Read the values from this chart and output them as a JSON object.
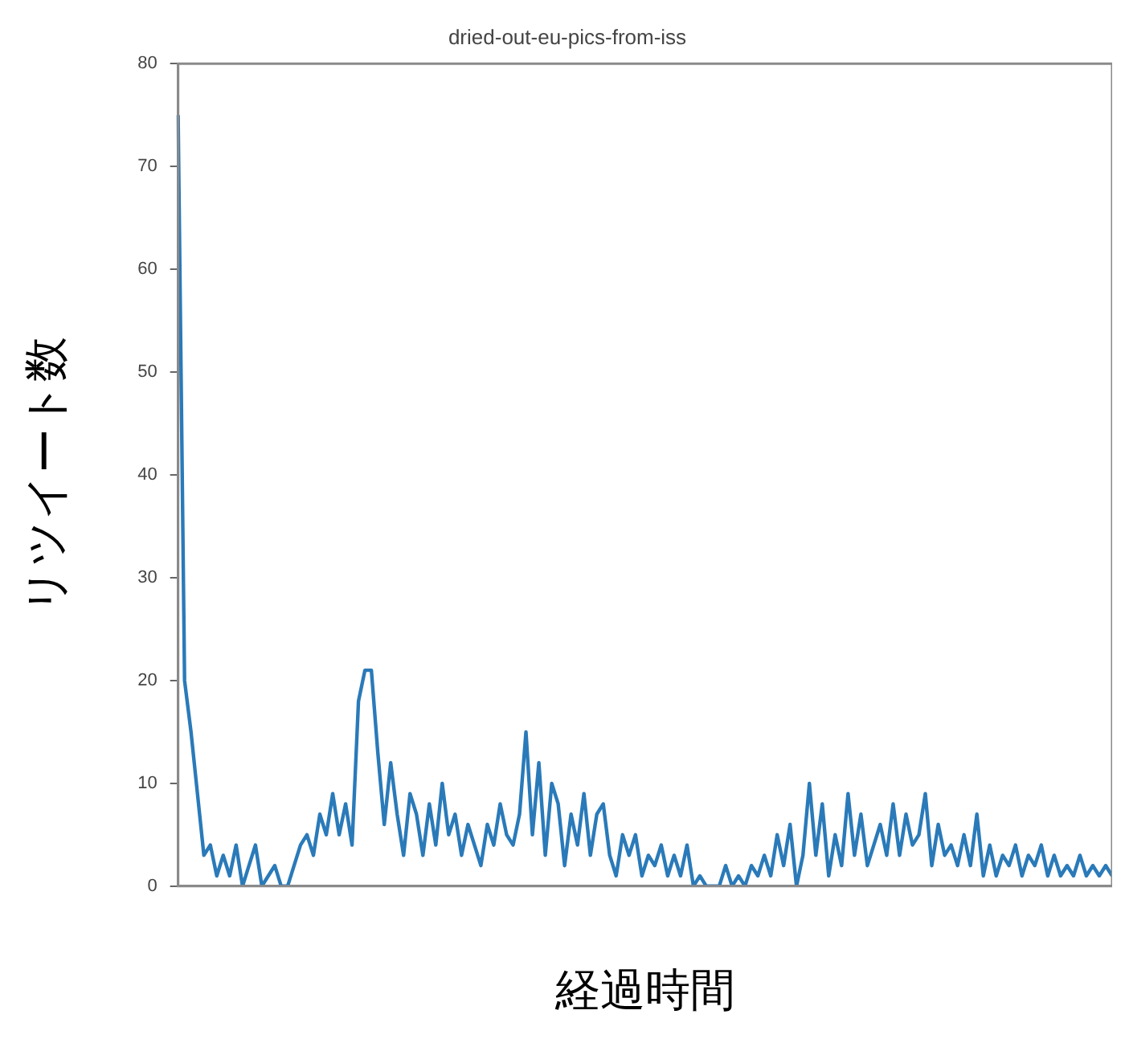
{
  "chart_data": {
    "type": "line",
    "title": "dried-out-eu-pics-from-iss",
    "xlabel": "経過時間",
    "ylabel": "リツイート数",
    "categories": [
      null,
      null,
      null,
      null,
      null,
      null,
      null,
      null,
      null,
      null,
      null,
      null,
      null,
      null,
      null,
      null,
      null,
      null,
      null,
      null,
      null,
      null,
      null,
      null,
      null,
      null,
      null,
      null,
      null,
      null,
      null,
      null,
      null,
      null,
      null,
      null,
      null,
      null,
      null,
      null,
      null,
      null,
      null,
      null,
      null,
      null,
      null,
      null,
      null,
      null,
      null,
      null,
      null,
      null,
      null,
      null,
      null,
      null,
      null,
      null,
      null,
      null,
      null,
      null,
      null,
      null,
      null,
      null,
      null,
      null,
      null,
      null,
      null,
      null,
      null,
      null,
      null,
      null,
      null,
      null,
      null,
      null,
      null,
      null,
      null,
      null,
      null,
      null,
      null,
      null,
      null,
      null,
      null,
      null,
      null,
      null,
      null,
      null,
      null,
      null,
      null,
      null,
      null,
      null,
      null,
      null,
      null,
      null,
      null,
      null,
      null,
      null,
      null,
      null,
      null,
      null,
      null,
      null,
      null,
      null,
      null,
      null,
      null,
      null,
      null,
      null,
      null,
      null,
      null,
      null,
      null,
      null,
      null,
      null,
      null,
      null,
      null,
      null,
      null,
      null,
      null,
      null,
      null,
      null,
      null,
      null
    ],
    "values": [
      75,
      20,
      15,
      9,
      3,
      4,
      1,
      3,
      1,
      4,
      0,
      2,
      4,
      0,
      1,
      2,
      0,
      0,
      2,
      4,
      5,
      3,
      7,
      5,
      9,
      5,
      8,
      4,
      18,
      21,
      21,
      13,
      6,
      12,
      7,
      3,
      9,
      7,
      3,
      8,
      4,
      10,
      5,
      7,
      3,
      6,
      4,
      2,
      6,
      4,
      8,
      5,
      4,
      7,
      15,
      5,
      12,
      3,
      10,
      8,
      2,
      7,
      4,
      9,
      3,
      7,
      8,
      3,
      1,
      5,
      3,
      5,
      1,
      3,
      2,
      4,
      1,
      3,
      1,
      4,
      0,
      1,
      0,
      0,
      0,
      2,
      0,
      1,
      0,
      2,
      1,
      3,
      1,
      5,
      2,
      6,
      0,
      3,
      10,
      3,
      8,
      1,
      5,
      2,
      9,
      3,
      7,
      2,
      4,
      6,
      3,
      8,
      3,
      7,
      4,
      5,
      9,
      2,
      6,
      3,
      4,
      2,
      5,
      2,
      7,
      1,
      4,
      1,
      3,
      2,
      4,
      1,
      3,
      2,
      4,
      1,
      3,
      1,
      2,
      1,
      3,
      1,
      2,
      1,
      2,
      1
    ],
    "color": "#2a7ab9",
    "marker": "none",
    "grid": false,
    "tick_labels": "y",
    "ylim": [
      0,
      80
    ],
    "yticks": [
      0,
      10,
      20,
      30,
      40,
      50,
      60,
      70,
      80
    ]
  }
}
